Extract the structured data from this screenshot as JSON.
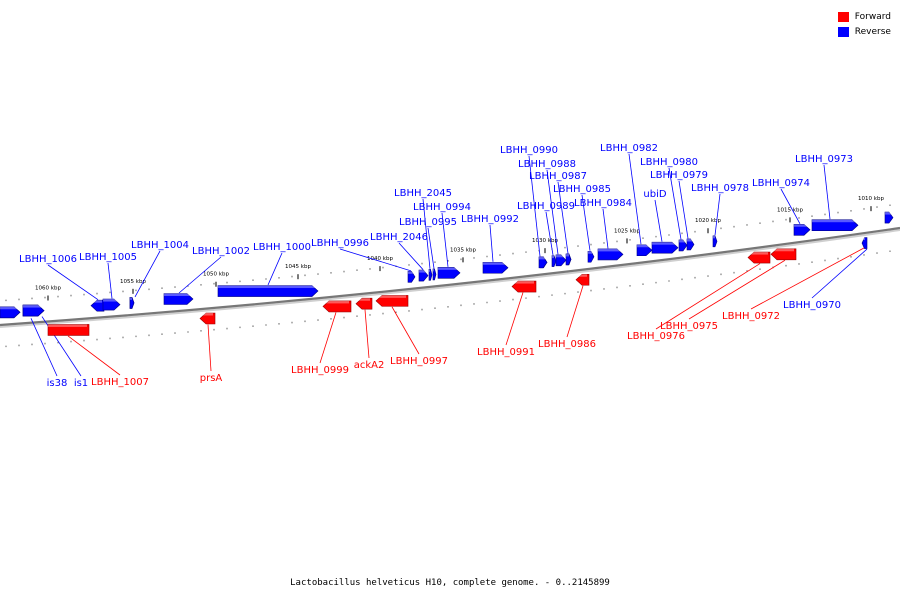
{
  "caption": "Lactobacillus helveticus H10, complete genome. - 0..2145899",
  "legend": [
    {
      "label": "Forward",
      "color": "#ff0000"
    },
    {
      "label": "Reverse",
      "color": "#0000ff"
    }
  ],
  "colors": {
    "forward": "#ff0000",
    "reverse": "#0000ff",
    "backbone": "#808080"
  },
  "axis": {
    "ticks": [
      {
        "label": "1060 kbp",
        "kbp": 1060
      },
      {
        "label": "1055 kbp",
        "kbp": 1055
      },
      {
        "label": "1050 kbp",
        "kbp": 1050
      },
      {
        "label": "1045 kbp",
        "kbp": 1045
      },
      {
        "label": "1040 kbp",
        "kbp": 1040
      },
      {
        "label": "1035 kbp",
        "kbp": 1035
      },
      {
        "label": "1030 kbp",
        "kbp": 1030
      },
      {
        "label": "1025 kbp",
        "kbp": 1025
      },
      {
        "label": "1020 kbp",
        "kbp": 1020
      },
      {
        "label": "1015 kbp",
        "kbp": 1015
      },
      {
        "label": "1010 kbp",
        "kbp": 1010
      }
    ]
  },
  "features": [
    {
      "name": "LBHH_1006",
      "strand": "reverse",
      "labeled": true
    },
    {
      "name": "LBHH_1005",
      "strand": "reverse",
      "labeled": true
    },
    {
      "name": "LBHH_1004",
      "strand": "reverse",
      "labeled": true
    },
    {
      "name": "LBHH_1002",
      "strand": "reverse",
      "labeled": true
    },
    {
      "name": "LBHH_1000",
      "strand": "reverse",
      "labeled": true
    },
    {
      "name": "LBHH_0996",
      "strand": "reverse",
      "labeled": true
    },
    {
      "name": "LBHH_2046",
      "strand": "reverse",
      "labeled": true
    },
    {
      "name": "LBHH_2045",
      "strand": "reverse",
      "labeled": true
    },
    {
      "name": "LBHH_0995",
      "strand": "reverse",
      "labeled": true
    },
    {
      "name": "LBHH_0994",
      "strand": "reverse",
      "labeled": true
    },
    {
      "name": "LBHH_0992",
      "strand": "reverse",
      "labeled": true
    },
    {
      "name": "LBHH_0990",
      "strand": "reverse",
      "labeled": true
    },
    {
      "name": "LBHH_0989",
      "strand": "reverse",
      "labeled": true
    },
    {
      "name": "LBHH_0988",
      "strand": "reverse",
      "labeled": true
    },
    {
      "name": "LBHH_0987",
      "strand": "reverse",
      "labeled": true
    },
    {
      "name": "LBHH_0985",
      "strand": "reverse",
      "labeled": true
    },
    {
      "name": "LBHH_0984",
      "strand": "reverse",
      "labeled": true
    },
    {
      "name": "LBHH_0982",
      "strand": "reverse",
      "labeled": true
    },
    {
      "name": "ubiD",
      "strand": "reverse",
      "labeled": true
    },
    {
      "name": "LBHH_0980",
      "strand": "reverse",
      "labeled": true
    },
    {
      "name": "LBHH_0979",
      "strand": "reverse",
      "labeled": true
    },
    {
      "name": "LBHH_0978",
      "strand": "reverse",
      "labeled": true
    },
    {
      "name": "LBHH_0974",
      "strand": "reverse",
      "labeled": true
    },
    {
      "name": "LBHH_0973",
      "strand": "reverse",
      "labeled": true
    },
    {
      "name": "LBHH_0970",
      "strand": "reverse",
      "labeled": true
    },
    {
      "name": "is38",
      "strand": "reverse",
      "labeled": true
    },
    {
      "name": "is1",
      "strand": "reverse",
      "labeled": true
    },
    {
      "name": "LBHH_1007",
      "strand": "forward",
      "labeled": true
    },
    {
      "name": "prsA",
      "strand": "forward",
      "labeled": true
    },
    {
      "name": "LBHH_0999",
      "strand": "forward",
      "labeled": true
    },
    {
      "name": "ackA2",
      "strand": "forward",
      "labeled": true
    },
    {
      "name": "LBHH_0997",
      "strand": "forward",
      "labeled": true
    },
    {
      "name": "LBHH_0991",
      "strand": "forward",
      "labeled": true
    },
    {
      "name": "LBHH_0986",
      "strand": "forward",
      "labeled": true
    },
    {
      "name": "LBHH_0976",
      "strand": "forward",
      "labeled": true
    },
    {
      "name": "LBHH_0975",
      "strand": "forward",
      "labeled": true
    },
    {
      "name": "LBHH_0972",
      "strand": "forward",
      "labeled": true
    }
  ]
}
